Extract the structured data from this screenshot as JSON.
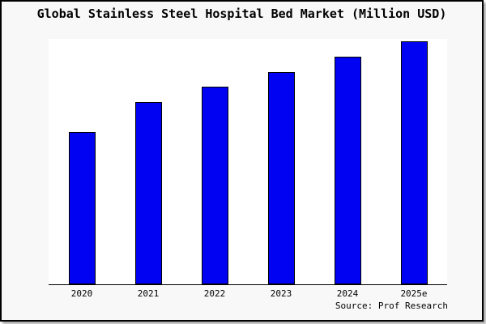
{
  "title": "Global Stainless Steel Hospital Bed Market (Million USD)",
  "source": "Source: Prof Research",
  "colors": {
    "bar_fill": "#0202f2",
    "bar_border": "#000000",
    "background": "#f8f8f8",
    "plot_background": "#ffffff",
    "axis": "#000000",
    "frame_border": "#000000"
  },
  "chart_data": {
    "type": "bar",
    "categories": [
      "2020",
      "2021",
      "2022",
      "2023",
      "2024",
      "2025e"
    ],
    "values": [
      62.8,
      75.1,
      81.4,
      87.4,
      93.7,
      100
    ],
    "values_unit": "relative index (2025e = 100); y-axis unlabeled in chart",
    "title": "Global Stainless Steel Hospital Bed Market (Million USD)",
    "xlabel": "",
    "ylabel": "",
    "ylim": [
      0,
      101
    ],
    "grid": false,
    "legend": "none",
    "annotations": [
      "Source: Prof Research"
    ]
  }
}
